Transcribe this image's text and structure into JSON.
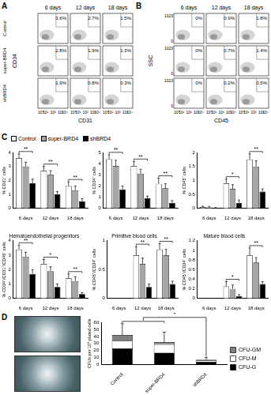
{
  "figure_labels": [
    "A",
    "B",
    "C",
    "D"
  ],
  "flow_panels": [
    {
      "x_label": "CD31",
      "y_label": "CD34",
      "columns": [
        "6 days",
        "12 days",
        "18 days"
      ],
      "rows": [
        {
          "name": "Control",
          "values": [
            "3.6%",
            "2.7%",
            "1.5%"
          ]
        },
        {
          "name": "super-BRD4",
          "values": [
            "2.8%",
            "1.9%",
            "1.3%"
          ]
        },
        {
          "name": "shBRD4",
          "values": [
            "1.9%",
            "0.8%",
            "0.3%"
          ]
        }
      ],
      "x_ticks": [
        "10⁰",
        "10¹",
        "10²",
        "10³",
        "10⁴"
      ]
    },
    {
      "x_label": "CD45",
      "y_label": "SSC",
      "columns": [
        "6 days",
        "12 days",
        "18 days"
      ],
      "rows": [
        {
          "values": [
            "0%",
            "0.9%",
            "1.8%"
          ]
        },
        {
          "values": [
            "0%",
            "0.7%",
            "1.4%"
          ]
        },
        {
          "values": [
            "0%",
            "0.2%",
            "0.5%"
          ]
        }
      ],
      "x_ticks": [
        "10⁰",
        "10¹",
        "10²",
        "10³",
        "10⁴"
      ],
      "y_ticks": [
        "0",
        "1023"
      ]
    }
  ],
  "chart_data": [
    {
      "type": "bar",
      "y_label": "% CD31⁺ cells",
      "categories": [
        "6 days",
        "12 days",
        "18 days"
      ],
      "series": [
        {
          "name": "Control",
          "color": "#ffffff",
          "values": [
            3.6,
            2.7,
            1.6
          ],
          "errors": [
            0.3,
            0.3,
            0.3
          ]
        },
        {
          "name": "super-BRD4",
          "color": "#a6a6a6",
          "values": [
            3.0,
            2.4,
            1.3
          ],
          "errors": [
            0.3,
            0.3,
            0.3
          ]
        },
        {
          "name": "shBRD4",
          "color": "#000000",
          "values": [
            1.8,
            1.0,
            0.5
          ],
          "errors": [
            0.3,
            0.2,
            0.2
          ]
        }
      ],
      "significance": [
        "**",
        "**",
        "**"
      ],
      "ylim": [
        0,
        4
      ],
      "yticks": [
        0,
        1,
        2,
        3,
        4
      ],
      "grid": false,
      "legend": "top"
    },
    {
      "type": "bar",
      "y_label": "% CD34⁺ cells",
      "categories": [
        "6 days",
        "12 days",
        "18 days"
      ],
      "series": [
        {
          "name": "Control",
          "color": "#ffffff",
          "values": [
            4.4,
            3.8,
            2.2
          ],
          "errors": [
            0.4,
            0.4,
            0.5
          ]
        },
        {
          "name": "super-BRD4",
          "color": "#a6a6a6",
          "values": [
            3.8,
            3.1,
            1.8
          ],
          "errors": [
            0.5,
            0.4,
            0.4
          ]
        },
        {
          "name": "shBRD4",
          "color": "#000000",
          "values": [
            1.7,
            0.9,
            0.5
          ],
          "errors": [
            0.3,
            0.2,
            0.2
          ]
        }
      ],
      "significance": [
        "**",
        "**",
        "**"
      ],
      "ylim": [
        0,
        5
      ],
      "yticks": [
        0,
        1,
        2,
        3,
        4,
        5
      ],
      "grid": false
    },
    {
      "type": "bar",
      "y_label": "% CD45⁺ cells",
      "categories": [
        "6 days",
        "12 days",
        "18 days"
      ],
      "series": [
        {
          "name": "Control",
          "color": "#ffffff",
          "values": [
            0.05,
            0.9,
            1.75
          ],
          "errors": [
            0.03,
            0.15,
            0.2
          ]
        },
        {
          "name": "super-BRD4",
          "color": "#a6a6a6",
          "values": [
            0.04,
            0.7,
            1.5
          ],
          "errors": [
            0.03,
            0.15,
            0.2
          ]
        },
        {
          "name": "shBRD4",
          "color": "#000000",
          "values": [
            0.02,
            0.2,
            0.6
          ],
          "errors": [
            0.01,
            0.1,
            0.1
          ]
        }
      ],
      "significance": [
        null,
        "*",
        "**"
      ],
      "ylim": [
        0,
        2
      ],
      "yticks": [
        0,
        0.5,
        1,
        1.5,
        2
      ],
      "grid": false
    },
    {
      "type": "bar",
      "title": "Hematoendothelial progenitors",
      "y_label": "% CD34⁺/CD31⁺/CD45⁻ cells",
      "categories": [
        "6 days",
        "12 days",
        "18 days"
      ],
      "series": [
        {
          "name": "Control",
          "color": "#ffffff",
          "values": [
            3.4,
            2.4,
            1.4
          ],
          "errors": [
            0.3,
            0.3,
            0.3
          ]
        },
        {
          "name": "super-BRD4",
          "color": "#a6a6a6",
          "values": [
            2.9,
            1.9,
            1.2
          ],
          "errors": [
            0.3,
            0.3,
            0.3
          ]
        },
        {
          "name": "shBRD4",
          "color": "#000000",
          "values": [
            1.7,
            0.8,
            0.3
          ],
          "errors": [
            0.3,
            0.2,
            0.1
          ]
        }
      ],
      "significance": [
        "**",
        "*",
        "**"
      ],
      "ylim": [
        0,
        4
      ],
      "yticks": [
        0,
        1,
        2,
        3,
        4
      ],
      "grid": false
    },
    {
      "type": "bar",
      "title": "Primitive blood cells",
      "y_label": "% CD45⁺/CD34⁺ cells",
      "categories": [
        "6 days",
        "12 days",
        "18 days"
      ],
      "series": [
        {
          "name": "Control",
          "color": "#ffffff",
          "values": [
            0,
            0.75,
            0.85
          ],
          "errors": [
            0,
            0.15,
            0.1
          ]
        },
        {
          "name": "super-BRD4",
          "color": "#a6a6a6",
          "values": [
            0,
            0.6,
            0.75
          ],
          "errors": [
            0,
            0.1,
            0.1
          ]
        },
        {
          "name": "shBRD4",
          "color": "#000000",
          "values": [
            0,
            0.2,
            0.25
          ],
          "errors": [
            0,
            0.05,
            0.05
          ]
        }
      ],
      "significance": [
        null,
        "**",
        "**"
      ],
      "ylim": [
        0,
        1
      ],
      "yticks": [
        0,
        0.5,
        1
      ],
      "grid": false
    },
    {
      "type": "bar",
      "title": "Mature blood cells",
      "y_label": "% CD45⁺/CD34⁻ cells",
      "categories": [
        "6 days",
        "12 days",
        "18 days"
      ],
      "series": [
        {
          "name": "Control",
          "color": "#ffffff",
          "values": [
            0,
            0.25,
            0.9
          ],
          "errors": [
            0,
            0.1,
            0.15
          ]
        },
        {
          "name": "super-BRD4",
          "color": "#a6a6a6",
          "values": [
            0,
            0.2,
            0.75
          ],
          "errors": [
            0,
            0.08,
            0.1
          ]
        },
        {
          "name": "shBRD4",
          "color": "#000000",
          "values": [
            0,
            0.05,
            0.3
          ],
          "errors": [
            0,
            0.03,
            0.05
          ]
        }
      ],
      "significance": [
        null,
        "*",
        "**"
      ],
      "ylim": [
        0,
        1.2
      ],
      "yticks": [
        0,
        0.2,
        0.4,
        0.6,
        0.8,
        1,
        1.2
      ],
      "grid": false
    },
    {
      "type": "bar",
      "stacked": true,
      "y_label": "CFUs per 10⁵ plated cells",
      "categories": [
        "Control",
        "super-BRD4",
        "shBRD4"
      ],
      "series": [
        {
          "name": "CFU-G",
          "color": "#000000",
          "values": [
            23,
            17,
            4
          ]
        },
        {
          "name": "CFU-M",
          "color": "#ffffff",
          "values": [
            11,
            12,
            2
          ]
        },
        {
          "name": "CFU-GM",
          "color": "#808080",
          "values": [
            8,
            3,
            1
          ]
        }
      ],
      "total_errors": [
        16,
        14,
        3
      ],
      "significance": {
        "label": "*",
        "groups": [
          [
            "Control",
            "super-BRD4"
          ],
          [
            "shBRD4"
          ]
        ]
      },
      "ylim": [
        0,
        60
      ],
      "yticks": [
        0,
        10,
        20,
        30,
        40,
        50,
        60
      ],
      "grid": false,
      "legend": "right"
    }
  ]
}
